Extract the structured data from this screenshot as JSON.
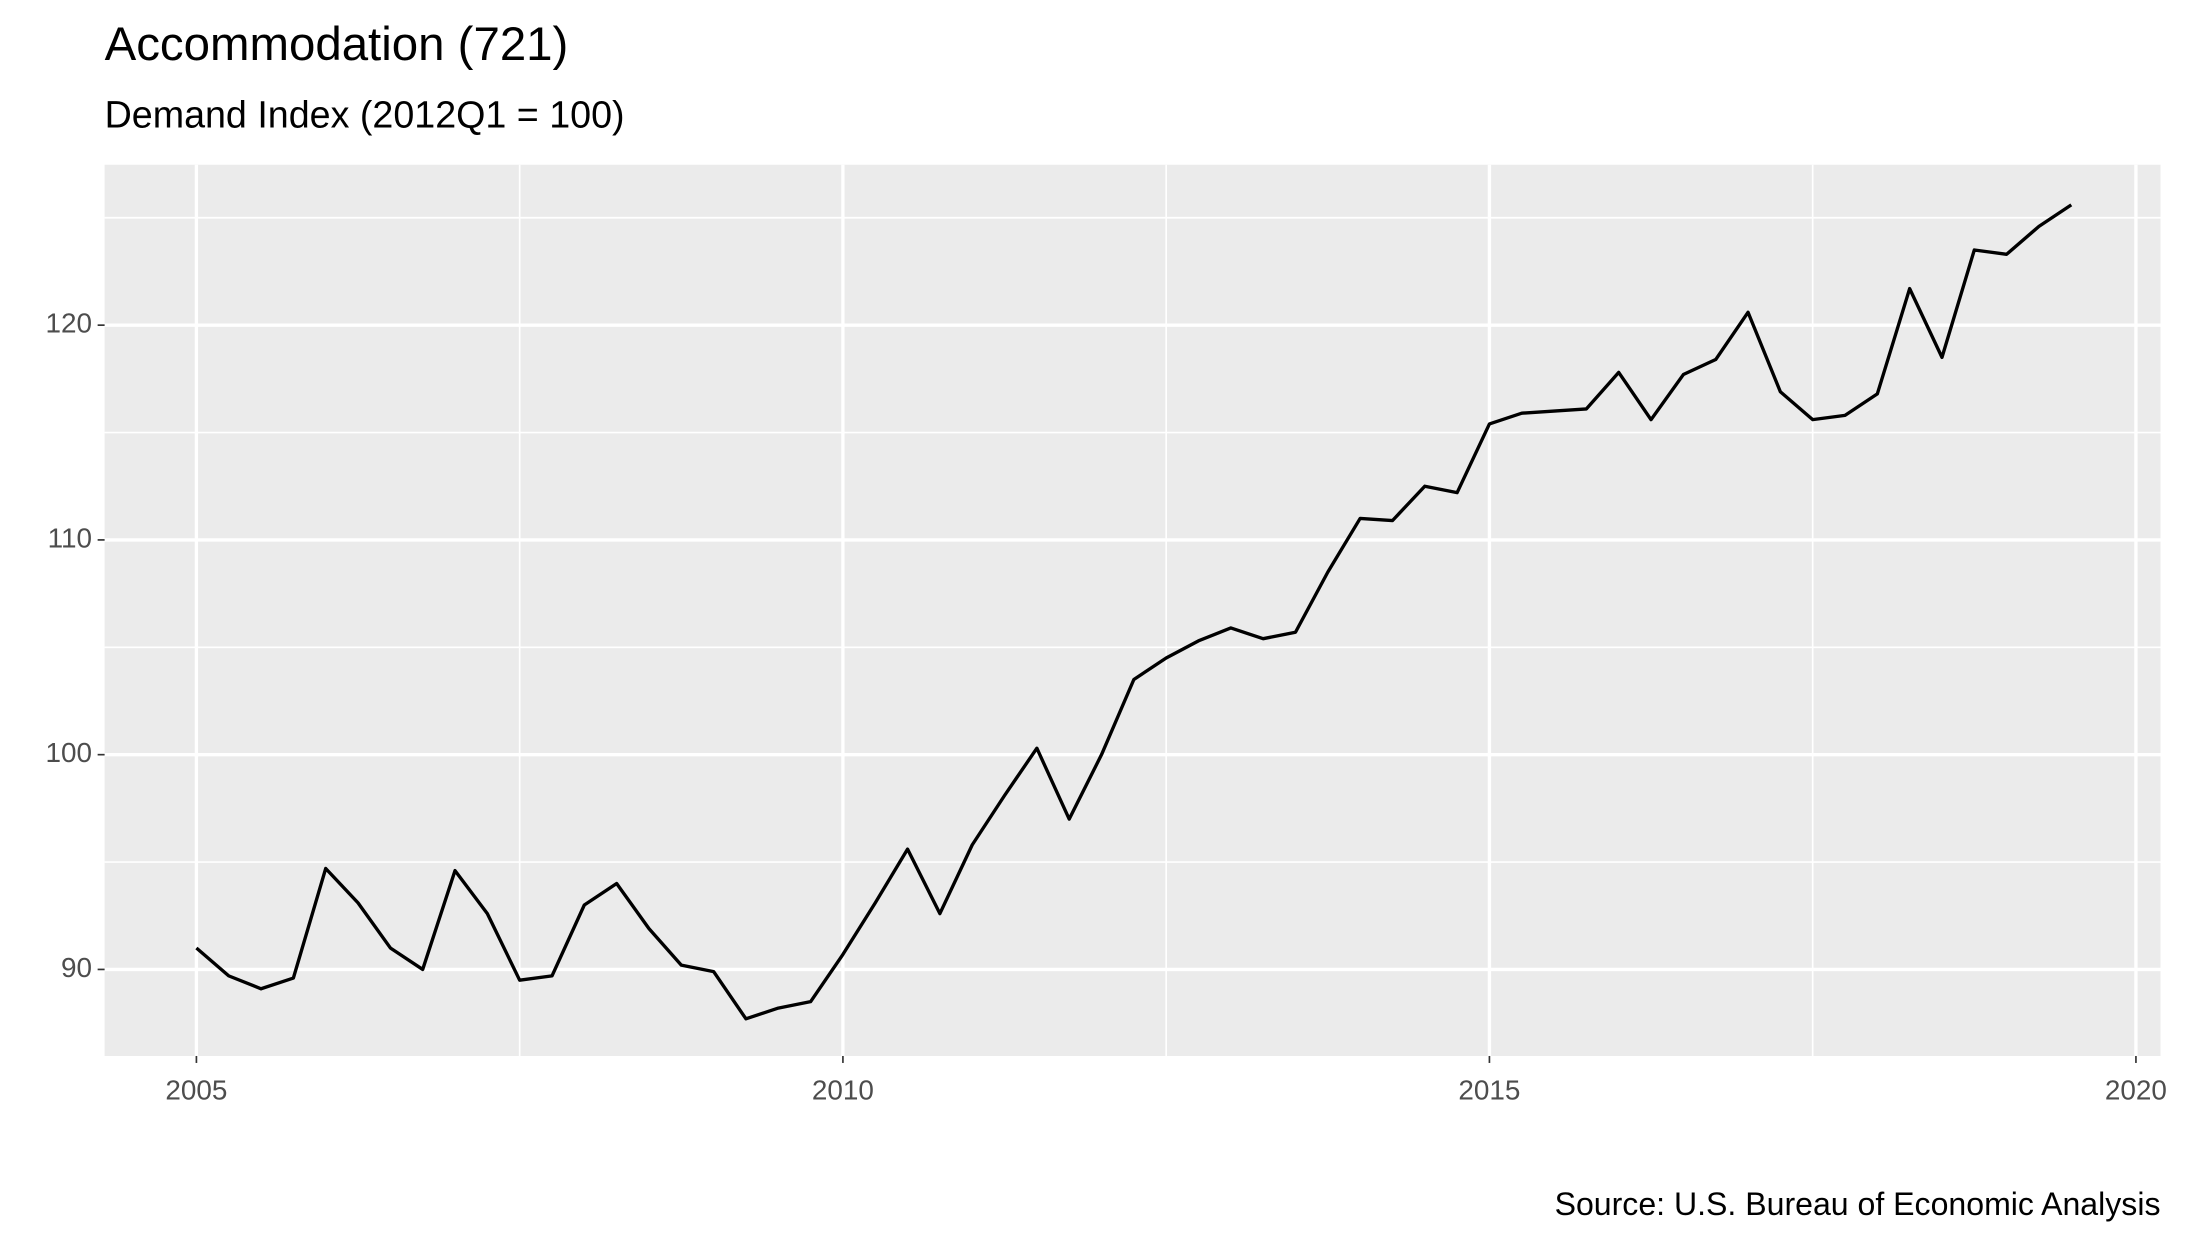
{
  "chart_data": {
    "type": "line",
    "title": "Accommodation (721)",
    "subtitle": "Demand Index (2012Q1 = 100)",
    "caption": "Source: U.S. Bureau of Economic Analysis",
    "x": [
      2005,
      2005.25,
      2005.5,
      2005.75,
      2006,
      2006.25,
      2006.5,
      2006.75,
      2007,
      2007.25,
      2007.5,
      2007.75,
      2008,
      2008.25,
      2008.5,
      2008.75,
      2009,
      2009.25,
      2009.5,
      2009.75,
      2010,
      2010.25,
      2010.5,
      2010.75,
      2011,
      2011.25,
      2011.5,
      2011.75,
      2012,
      2012.25,
      2012.5,
      2012.75,
      2013,
      2013.25,
      2013.5,
      2013.75,
      2014,
      2014.25,
      2014.5,
      2014.75,
      2015,
      2015.25,
      2015.5,
      2015.75,
      2016,
      2016.25,
      2016.5,
      2016.75,
      2017,
      2017.25,
      2017.5,
      2017.75,
      2018,
      2018.25,
      2018.5,
      2018.75,
      2019,
      2019.25,
      2019.5
    ],
    "values": [
      91.0,
      89.7,
      89.1,
      89.6,
      94.7,
      93.1,
      91.0,
      90.0,
      94.6,
      92.6,
      89.5,
      89.7,
      93.0,
      94.0,
      91.9,
      90.2,
      89.9,
      87.7,
      88.2,
      88.5,
      90.7,
      93.1,
      95.6,
      92.6,
      95.8,
      98.1,
      100.3,
      97.0,
      100.0,
      103.5,
      104.5,
      105.3,
      105.9,
      105.4,
      105.7,
      108.5,
      111.0,
      110.9,
      112.5,
      112.2,
      115.4,
      115.9,
      116.0,
      116.1,
      117.8,
      115.6,
      117.7,
      118.4,
      120.6,
      116.9,
      115.6,
      115.8,
      116.8,
      121.7,
      118.5,
      123.5,
      123.3,
      124.6,
      125.6
    ],
    "color": "#000000",
    "xlim": [
      2004.29,
      2020.19
    ],
    "ylim": [
      85.97,
      127.47
    ],
    "xticks": [
      2005,
      2010,
      2015,
      2020
    ],
    "yticks": [
      90,
      100,
      110,
      120
    ],
    "x_minor_ticks": [
      2007.5,
      2012.5,
      2017.5
    ],
    "y_minor_ticks": [
      95,
      105,
      115,
      125
    ],
    "grid": true
  }
}
